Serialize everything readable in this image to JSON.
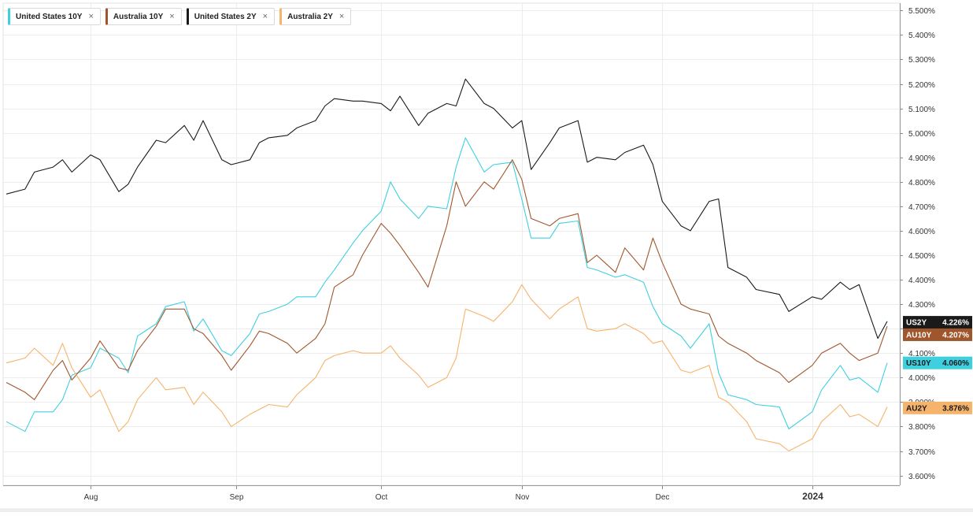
{
  "legend": [
    {
      "label": "United States 10Y",
      "close": "×",
      "color": "#3fd0e0"
    },
    {
      "label": "Australia 10Y",
      "close": "×",
      "color": "#a0562c"
    },
    {
      "label": "United States 2Y",
      "close": "×",
      "color": "#1a1a1a"
    },
    {
      "label": "Australia 2Y",
      "close": "×",
      "color": "#f5b36b"
    }
  ],
  "badges": [
    {
      "label": "US2Y",
      "value": "4.226%",
      "color": "#1a1a1a",
      "text_color": "#ffffff",
      "y": 4.226
    },
    {
      "label": "AU10Y",
      "value": "4.207%",
      "color": "#a0562c",
      "text_color": "#ffffff",
      "y": 4.175
    },
    {
      "label": "US10Y",
      "value": "4.060%",
      "color": "#3fd0e0",
      "text_color": "#1a1a1a",
      "y": 4.06
    },
    {
      "label": "AU2Y",
      "value": "3.876%",
      "color": "#f5b36b",
      "text_color": "#1a1a1a",
      "y": 3.876
    }
  ],
  "chart_data": {
    "type": "line",
    "title": "",
    "xlabel": "",
    "ylabel": "",
    "ylim": [
      3.56,
      5.53
    ],
    "y_ticks": [
      3.6,
      3.7,
      3.8,
      3.9,
      4.0,
      4.1,
      4.2,
      4.3,
      4.4,
      4.5,
      4.6,
      4.7,
      4.8,
      4.9,
      5.0,
      5.1,
      5.2,
      5.3,
      5.4,
      5.5
    ],
    "y_tick_labels": [
      "3.600%",
      "3.700%",
      "3.800%",
      "3.900%",
      "4.000%",
      "4.100%",
      "4.200%",
      "4.300%",
      "4.400%",
      "4.500%",
      "4.600%",
      "4.700%",
      "4.800%",
      "4.900%",
      "5.000%",
      "5.100%",
      "5.200%",
      "5.300%",
      "5.400%",
      "5.500%"
    ],
    "x_label_dates": [
      "2023-08-01",
      "2023-09-01",
      "2023-10-02",
      "2023-11-01",
      "2023-12-01",
      "2024-01-02"
    ],
    "x_ticks": [
      "Aug",
      "Sep",
      "Oct",
      "Nov",
      "Dec",
      "2024"
    ],
    "x_range": [
      "2023-07-14",
      "2024-01-19"
    ],
    "grid": true,
    "legend_position": "top-left",
    "series": [
      {
        "name": "United States 2Y",
        "color": "#1a1a1a",
        "x": [
          "2023-07-14",
          "2023-07-18",
          "2023-07-20",
          "2023-07-24",
          "2023-07-26",
          "2023-07-28",
          "2023-08-01",
          "2023-08-03",
          "2023-08-07",
          "2023-08-09",
          "2023-08-11",
          "2023-08-15",
          "2023-08-17",
          "2023-08-21",
          "2023-08-23",
          "2023-08-25",
          "2023-08-29",
          "2023-08-31",
          "2023-09-04",
          "2023-09-06",
          "2023-09-08",
          "2023-09-12",
          "2023-09-14",
          "2023-09-18",
          "2023-09-20",
          "2023-09-22",
          "2023-09-26",
          "2023-09-28",
          "2023-10-02",
          "2023-10-04",
          "2023-10-06",
          "2023-10-10",
          "2023-10-12",
          "2023-10-16",
          "2023-10-18",
          "2023-10-20",
          "2023-10-24",
          "2023-10-26",
          "2023-10-30",
          "2023-11-01",
          "2023-11-03",
          "2023-11-07",
          "2023-11-09",
          "2023-11-13",
          "2023-11-15",
          "2023-11-17",
          "2023-11-21",
          "2023-11-23",
          "2023-11-27",
          "2023-11-29",
          "2023-12-01",
          "2023-12-05",
          "2023-12-07",
          "2023-12-11",
          "2023-12-13",
          "2023-12-15",
          "2023-12-19",
          "2023-12-21",
          "2023-12-26",
          "2023-12-28",
          "2024-01-02",
          "2024-01-04",
          "2024-01-08",
          "2024-01-10",
          "2024-01-12",
          "2024-01-16",
          "2024-01-18"
        ],
        "y": [
          4.75,
          4.77,
          4.84,
          4.86,
          4.89,
          4.84,
          4.91,
          4.89,
          4.76,
          4.79,
          4.86,
          4.97,
          4.96,
          5.03,
          4.97,
          5.05,
          4.89,
          4.87,
          4.89,
          4.96,
          4.98,
          4.99,
          5.02,
          5.05,
          5.11,
          5.14,
          5.13,
          5.13,
          5.12,
          5.09,
          5.15,
          5.03,
          5.08,
          5.12,
          5.11,
          5.22,
          5.12,
          5.1,
          5.02,
          5.05,
          4.85,
          4.96,
          5.02,
          5.05,
          4.88,
          4.9,
          4.89,
          4.92,
          4.95,
          4.87,
          4.72,
          4.62,
          4.6,
          4.72,
          4.73,
          4.45,
          4.41,
          4.36,
          4.34,
          4.27,
          4.33,
          4.32,
          4.39,
          4.36,
          4.38,
          4.16,
          4.23
        ]
      },
      {
        "name": "United States 10Y",
        "color": "#3fd0e0",
        "x": [
          "2023-07-14",
          "2023-07-18",
          "2023-07-20",
          "2023-07-24",
          "2023-07-26",
          "2023-07-28",
          "2023-08-01",
          "2023-08-03",
          "2023-08-07",
          "2023-08-09",
          "2023-08-11",
          "2023-08-15",
          "2023-08-17",
          "2023-08-21",
          "2023-08-23",
          "2023-08-25",
          "2023-08-29",
          "2023-08-31",
          "2023-09-04",
          "2023-09-06",
          "2023-09-08",
          "2023-09-12",
          "2023-09-14",
          "2023-09-18",
          "2023-09-20",
          "2023-09-22",
          "2023-09-26",
          "2023-09-28",
          "2023-10-02",
          "2023-10-04",
          "2023-10-06",
          "2023-10-10",
          "2023-10-12",
          "2023-10-16",
          "2023-10-18",
          "2023-10-20",
          "2023-10-24",
          "2023-10-26",
          "2023-10-30",
          "2023-11-01",
          "2023-11-03",
          "2023-11-07",
          "2023-11-09",
          "2023-11-13",
          "2023-11-15",
          "2023-11-17",
          "2023-11-21",
          "2023-11-23",
          "2023-11-27",
          "2023-11-29",
          "2023-12-01",
          "2023-12-05",
          "2023-12-07",
          "2023-12-11",
          "2023-12-13",
          "2023-12-15",
          "2023-12-19",
          "2023-12-21",
          "2023-12-26",
          "2023-12-28",
          "2024-01-02",
          "2024-01-04",
          "2024-01-08",
          "2024-01-10",
          "2024-01-12",
          "2024-01-16",
          "2024-01-18"
        ],
        "y": [
          3.82,
          3.78,
          3.86,
          3.86,
          3.91,
          4.01,
          4.04,
          4.12,
          4.08,
          4.02,
          4.17,
          4.22,
          4.29,
          4.31,
          4.19,
          4.24,
          4.11,
          4.09,
          4.18,
          4.26,
          4.27,
          4.3,
          4.33,
          4.33,
          4.39,
          4.44,
          4.55,
          4.6,
          4.68,
          4.8,
          4.73,
          4.65,
          4.7,
          4.69,
          4.86,
          4.98,
          4.84,
          4.87,
          4.88,
          4.73,
          4.57,
          4.57,
          4.63,
          4.64,
          4.45,
          4.44,
          4.41,
          4.42,
          4.39,
          4.29,
          4.22,
          4.17,
          4.12,
          4.22,
          4.02,
          3.93,
          3.91,
          3.89,
          3.88,
          3.79,
          3.86,
          3.95,
          4.05,
          3.99,
          4.0,
          3.94,
          4.06
        ]
      },
      {
        "name": "Australia 10Y",
        "color": "#a0562c",
        "x": [
          "2023-07-14",
          "2023-07-18",
          "2023-07-20",
          "2023-07-24",
          "2023-07-26",
          "2023-07-28",
          "2023-08-01",
          "2023-08-03",
          "2023-08-07",
          "2023-08-09",
          "2023-08-11",
          "2023-08-15",
          "2023-08-17",
          "2023-08-21",
          "2023-08-23",
          "2023-08-25",
          "2023-08-29",
          "2023-08-31",
          "2023-09-04",
          "2023-09-06",
          "2023-09-08",
          "2023-09-12",
          "2023-09-14",
          "2023-09-18",
          "2023-09-20",
          "2023-09-22",
          "2023-09-26",
          "2023-09-28",
          "2023-10-02",
          "2023-10-04",
          "2023-10-06",
          "2023-10-10",
          "2023-10-12",
          "2023-10-16",
          "2023-10-18",
          "2023-10-20",
          "2023-10-24",
          "2023-10-26",
          "2023-10-30",
          "2023-11-01",
          "2023-11-03",
          "2023-11-07",
          "2023-11-09",
          "2023-11-13",
          "2023-11-15",
          "2023-11-17",
          "2023-11-21",
          "2023-11-23",
          "2023-11-27",
          "2023-11-29",
          "2023-12-01",
          "2023-12-05",
          "2023-12-07",
          "2023-12-11",
          "2023-12-13",
          "2023-12-15",
          "2023-12-19",
          "2023-12-21",
          "2023-12-26",
          "2023-12-28",
          "2024-01-02",
          "2024-01-04",
          "2024-01-08",
          "2024-01-10",
          "2024-01-12",
          "2024-01-16",
          "2024-01-18"
        ],
        "y": [
          3.98,
          3.94,
          3.91,
          4.03,
          4.07,
          3.99,
          4.08,
          4.15,
          4.04,
          4.03,
          4.11,
          4.21,
          4.28,
          4.28,
          4.2,
          4.18,
          4.09,
          4.03,
          4.13,
          4.19,
          4.18,
          4.14,
          4.1,
          4.16,
          4.22,
          4.37,
          4.42,
          4.5,
          4.63,
          4.59,
          4.54,
          4.43,
          4.37,
          4.62,
          4.8,
          4.7,
          4.8,
          4.77,
          4.89,
          4.81,
          4.65,
          4.62,
          4.65,
          4.67,
          4.47,
          4.5,
          4.43,
          4.53,
          4.44,
          4.57,
          4.47,
          4.3,
          4.28,
          4.26,
          4.17,
          4.14,
          4.1,
          4.07,
          4.02,
          3.98,
          4.05,
          4.1,
          4.14,
          4.1,
          4.07,
          4.1,
          4.21
        ]
      },
      {
        "name": "Australia 2Y",
        "color": "#f5b36b",
        "x": [
          "2023-07-14",
          "2023-07-18",
          "2023-07-20",
          "2023-07-24",
          "2023-07-26",
          "2023-07-28",
          "2023-08-01",
          "2023-08-03",
          "2023-08-07",
          "2023-08-09",
          "2023-08-11",
          "2023-08-15",
          "2023-08-17",
          "2023-08-21",
          "2023-08-23",
          "2023-08-25",
          "2023-08-29",
          "2023-08-31",
          "2023-09-04",
          "2023-09-06",
          "2023-09-08",
          "2023-09-12",
          "2023-09-14",
          "2023-09-18",
          "2023-09-20",
          "2023-09-22",
          "2023-09-26",
          "2023-09-28",
          "2023-10-02",
          "2023-10-04",
          "2023-10-06",
          "2023-10-10",
          "2023-10-12",
          "2023-10-16",
          "2023-10-18",
          "2023-10-20",
          "2023-10-24",
          "2023-10-26",
          "2023-10-30",
          "2023-11-01",
          "2023-11-03",
          "2023-11-07",
          "2023-11-09",
          "2023-11-13",
          "2023-11-15",
          "2023-11-17",
          "2023-11-21",
          "2023-11-23",
          "2023-11-27",
          "2023-11-29",
          "2023-12-01",
          "2023-12-05",
          "2023-12-07",
          "2023-12-11",
          "2023-12-13",
          "2023-12-15",
          "2023-12-19",
          "2023-12-21",
          "2023-12-26",
          "2023-12-28",
          "2024-01-02",
          "2024-01-04",
          "2024-01-08",
          "2024-01-10",
          "2024-01-12",
          "2024-01-16",
          "2024-01-18"
        ],
        "y": [
          4.06,
          4.08,
          4.12,
          4.05,
          4.14,
          4.04,
          3.92,
          3.95,
          3.78,
          3.82,
          3.91,
          4.0,
          3.95,
          3.96,
          3.89,
          3.94,
          3.86,
          3.8,
          3.85,
          3.87,
          3.89,
          3.88,
          3.93,
          4.0,
          4.07,
          4.09,
          4.11,
          4.1,
          4.1,
          4.13,
          4.08,
          4.01,
          3.96,
          4.0,
          4.08,
          4.28,
          4.25,
          4.23,
          4.31,
          4.38,
          4.32,
          4.24,
          4.28,
          4.33,
          4.2,
          4.19,
          4.2,
          4.22,
          4.18,
          4.14,
          4.15,
          4.03,
          4.02,
          4.05,
          3.92,
          3.9,
          3.82,
          3.75,
          3.73,
          3.7,
          3.75,
          3.82,
          3.89,
          3.84,
          3.85,
          3.8,
          3.88
        ]
      }
    ]
  }
}
